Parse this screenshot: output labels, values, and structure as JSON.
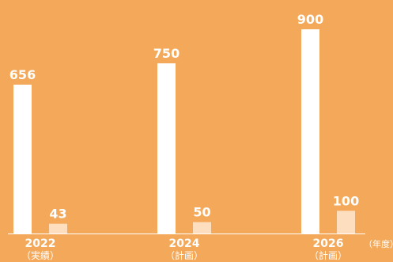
{
  "chart_data": {
    "type": "bar",
    "categories": [
      "2022",
      "2024",
      "2026"
    ],
    "category_notes": [
      "（実績）",
      "（計画）",
      "（計画）"
    ],
    "unit_label": "（年度）",
    "series": [
      {
        "values": [
          656,
          750,
          900
        ]
      },
      {
        "values": [
          43,
          50,
          100
        ]
      }
    ],
    "data_labels": [
      [
        "656",
        "750",
        "900"
      ],
      [
        "43",
        "50",
        "100"
      ]
    ],
    "legend": "none",
    "grid": false,
    "ylim": [
      0,
      900
    ]
  },
  "colors": {
    "background": "#F4A95A",
    "series_1": "#FFFFFF",
    "series_2": "#FDDFBF",
    "text": "#FFFFFF",
    "axis": "#FFFFFF"
  }
}
